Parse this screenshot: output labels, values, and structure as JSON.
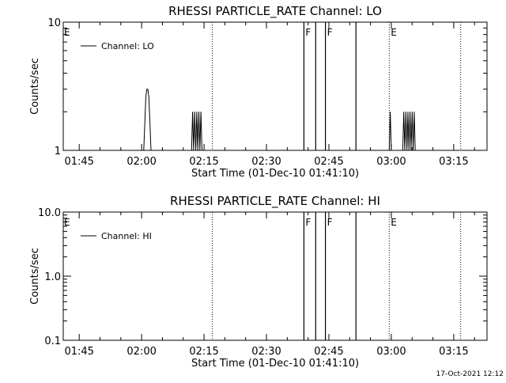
{
  "chart_data": [
    {
      "type": "line",
      "title": "RHESSI PARTICLE_RATE Channel: LO",
      "xlabel": "Start Time (01-Dec-10 01:41:10)",
      "ylabel": "Counts/sec",
      "yscale": "log",
      "ylim": [
        1,
        10
      ],
      "yticks": [
        1,
        10
      ],
      "ytick_labels": [
        "1",
        "10"
      ],
      "xlim": [
        "01:41:10",
        "03:23:00"
      ],
      "xticks": [
        "01:45",
        "02:00",
        "02:15",
        "02:30",
        "02:45",
        "03:00",
        "03:15"
      ],
      "legend": {
        "position": "top-left",
        "entries": [
          "Channel: LO"
        ]
      },
      "series": [
        {
          "name": "Channel: LO",
          "x": [
            "02:00:30",
            "02:00:45",
            "02:01:00",
            "02:01:15",
            "02:01:30",
            "02:01:45",
            "02:02:00",
            "02:02:15",
            "02:12:00",
            "02:12:15",
            "02:12:30",
            "02:12:45",
            "02:13:00",
            "02:13:15",
            "02:13:30",
            "02:13:45",
            "02:14:00",
            "02:14:15",
            "02:14:30",
            "02:59:30",
            "02:59:45",
            "03:00:00",
            "03:02:45",
            "03:03:00",
            "03:03:15",
            "03:03:30",
            "03:03:45",
            "03:04:00",
            "03:04:15",
            "03:04:30",
            "03:04:45",
            "03:05:00",
            "03:05:15",
            "03:05:30",
            "03:05:45"
          ],
          "y": [
            1,
            1.6,
            2.6,
            3,
            3,
            2.6,
            1.6,
            1,
            1,
            2,
            1,
            2,
            1,
            2,
            1,
            2,
            1,
            2,
            1,
            1,
            2,
            1,
            1,
            2,
            1,
            2,
            1,
            2,
            1,
            2,
            1,
            2,
            1,
            2,
            1
          ]
        }
      ],
      "event_lines": [
        {
          "time": "02:17:00",
          "label": "",
          "style": "dotted"
        },
        {
          "time": "02:39:00",
          "label": "F",
          "style": "solid"
        },
        {
          "time": "02:41:50",
          "label": "",
          "style": "solid"
        },
        {
          "time": "02:44:10",
          "label": "F",
          "style": "solid"
        },
        {
          "time": "02:51:30",
          "label": "",
          "style": "solid"
        },
        {
          "time": "02:59:30",
          "label": "E",
          "style": "dotted"
        },
        {
          "time": "03:16:40",
          "label": "",
          "style": "dotted"
        }
      ],
      "edge_label": "E"
    },
    {
      "type": "line",
      "title": "RHESSI PARTICLE_RATE Channel: HI",
      "xlabel": "Start Time (01-Dec-10 01:41:10)",
      "ylabel": "Counts/sec",
      "yscale": "log",
      "ylim": [
        0.1,
        10
      ],
      "yticks": [
        0.1,
        1,
        10
      ],
      "ytick_labels": [
        "0.1",
        "1.0",
        "10.0"
      ],
      "xlim": [
        "01:41:10",
        "03:23:00"
      ],
      "xticks": [
        "01:45",
        "02:00",
        "02:15",
        "02:30",
        "02:45",
        "03:00",
        "03:15"
      ],
      "legend": {
        "position": "top-left",
        "entries": [
          "Channel: HI"
        ]
      },
      "series": [
        {
          "name": "Channel: HI",
          "x": [],
          "y": []
        }
      ],
      "event_lines": [
        {
          "time": "02:17:00",
          "label": "",
          "style": "dotted"
        },
        {
          "time": "02:39:00",
          "label": "F",
          "style": "solid"
        },
        {
          "time": "02:41:50",
          "label": "",
          "style": "solid"
        },
        {
          "time": "02:44:10",
          "label": "F",
          "style": "solid"
        },
        {
          "time": "02:51:30",
          "label": "",
          "style": "solid"
        },
        {
          "time": "02:59:30",
          "label": "E",
          "style": "dotted"
        },
        {
          "time": "03:16:40",
          "label": "",
          "style": "dotted"
        }
      ],
      "edge_label": "E"
    }
  ],
  "footer": {
    "timestamp": "17-Oct-2021 12:12"
  }
}
